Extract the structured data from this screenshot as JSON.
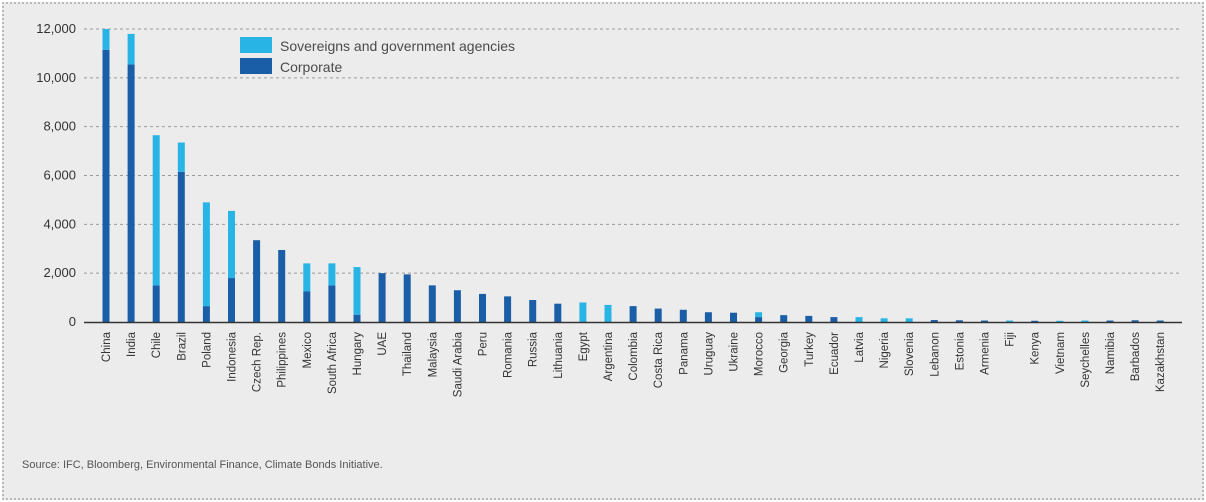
{
  "source": "Source: IFC, Bloomberg, Environmental Finance, Climate Bonds Initiative.",
  "chart_data": {
    "type": "bar",
    "stacked": true,
    "categories": [
      "China",
      "India",
      "Chile",
      "Brazil",
      "Poland",
      "Indonesia",
      "Czech Rep.",
      "Philippines",
      "Mexico",
      "South Africa",
      "Hungary",
      "UAE",
      "Thailand",
      "Malaysia",
      "Saudi Arabia",
      "Peru",
      "Romania",
      "Russia",
      "Lithuania",
      "Egypt",
      "Argentina",
      "Colombia",
      "Costa Rica",
      "Panama",
      "Uruguay",
      "Ukraine",
      "Morocco",
      "Georgia",
      "Turkey",
      "Ecuador",
      "Latvia",
      "Nigeria",
      "Slovenia",
      "Lebanon",
      "Estonia",
      "Armenia",
      "Fiji",
      "Kenya",
      "Vietnam",
      "Seychelles",
      "Namibia",
      "Barbados",
      "Kazakhstan"
    ],
    "series": [
      {
        "name": "Corporate",
        "color": "#1a5ea8",
        "values": [
          11150,
          10550,
          1500,
          6150,
          650,
          1800,
          3350,
          2950,
          1250,
          1500,
          300,
          2000,
          1950,
          1500,
          1300,
          1150,
          1050,
          900,
          750,
          0,
          0,
          650,
          550,
          500,
          400,
          380,
          200,
          280,
          250,
          200,
          0,
          0,
          0,
          80,
          70,
          60,
          0,
          50,
          0,
          0,
          60,
          70,
          60
        ]
      },
      {
        "name": "Sovereigns and government agencies",
        "color": "#29b4e6",
        "values": [
          850,
          1250,
          6150,
          1200,
          4250,
          2750,
          0,
          0,
          1150,
          900,
          1950,
          0,
          0,
          0,
          0,
          0,
          0,
          0,
          0,
          800,
          700,
          0,
          0,
          0,
          0,
          0,
          200,
          0,
          0,
          0,
          200,
          150,
          150,
          0,
          0,
          0,
          60,
          0,
          50,
          60,
          0,
          0,
          0
        ]
      }
    ],
    "ylim": [
      0,
      12000
    ],
    "yticks": [
      0,
      2000,
      4000,
      6000,
      8000,
      10000,
      12000
    ],
    "ytick_labels": [
      "0",
      "2,000",
      "4,000",
      "6,000",
      "8,000",
      "10,000",
      "12,000"
    ],
    "grid": true,
    "legend_position": "top-left",
    "legend": [
      {
        "label": "Sovereigns and government agencies",
        "color": "#29b4e6"
      },
      {
        "label": "Corporate",
        "color": "#1a5ea8"
      }
    ]
  }
}
